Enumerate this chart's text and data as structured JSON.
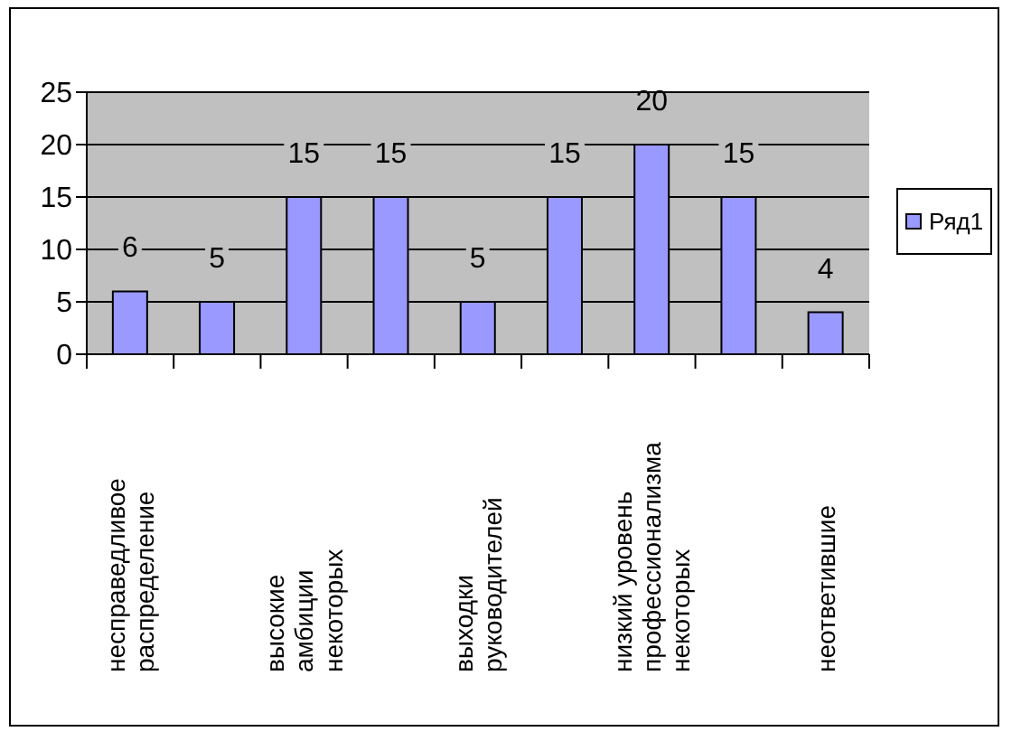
{
  "chart_data": {
    "type": "bar",
    "categories": [
      "несправедливое распределение",
      null,
      "высокие амбиции некоторых",
      null,
      "выходки руководителей",
      null,
      "низкий уровень профессионализма некоторых",
      null,
      "неответившие"
    ],
    "series": [
      {
        "name": "Ряд1",
        "color": "#9999ff",
        "values": [
          6,
          5,
          15,
          15,
          5,
          15,
          20,
          15,
          4
        ]
      }
    ],
    "ylim": [
      0,
      25
    ],
    "yticks": [
      0,
      5,
      10,
      15,
      20,
      25
    ],
    "grid": "y",
    "legend": "right",
    "data_labels": true
  }
}
